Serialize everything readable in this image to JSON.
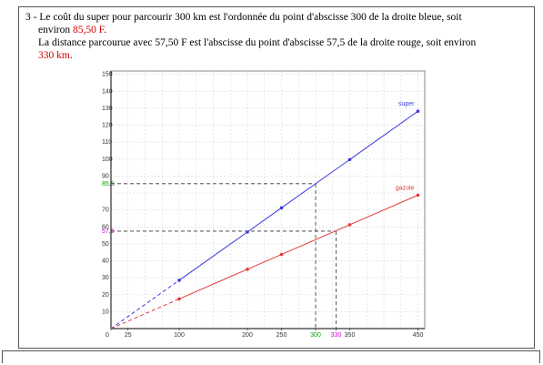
{
  "text": {
    "line1": "3 - Le coût du super pour parcourir 300 km est l'ordonnée du point d'abscisse 300 de la droite bleue, soit",
    "line2_prefix": "environ ",
    "line2_value": "85,50 F",
    "line2_suffix": ".",
    "line3": "La distance parcourue avec 57,50 F est l'abscisse du point d'abscisse 57,5 de la droite rouge, soit environ",
    "line4_value": "330 km",
    "line4_suffix": "."
  },
  "colors": {
    "super": "#3a3ae0",
    "gazole": "#e03a3a",
    "highlight_red": "#d40000",
    "highlight_magenta": "#d000d0",
    "highlight_green": "#00a000"
  },
  "chart_data": {
    "type": "line",
    "xlim": [
      0,
      460
    ],
    "ylim": [
      0,
      152
    ],
    "x_ticks": [
      {
        "value": 0,
        "label": "0"
      },
      {
        "value": 25,
        "label": "25"
      },
      {
        "value": 100,
        "label": "100"
      },
      {
        "value": 200,
        "label": "200"
      },
      {
        "value": 250,
        "label": "250"
      },
      {
        "value": 300,
        "label": "300",
        "color": "#00a000"
      },
      {
        "value": 330,
        "label": "330",
        "color": "#d000d0"
      },
      {
        "value": 350,
        "label": "350"
      },
      {
        "value": 450,
        "label": "450"
      }
    ],
    "y_ticks": [
      {
        "value": 10,
        "label": "10"
      },
      {
        "value": 20,
        "label": "20"
      },
      {
        "value": 30,
        "label": "30"
      },
      {
        "value": 40,
        "label": "40"
      },
      {
        "value": 50,
        "label": "50"
      },
      {
        "value": 57.5,
        "label": "57,5",
        "color": "#d000d0"
      },
      {
        "value": 60,
        "label": "60"
      },
      {
        "value": 70,
        "label": "70"
      },
      {
        "value": 85.5,
        "label": "85,5",
        "color": "#00a000"
      },
      {
        "value": 90,
        "label": "90"
      },
      {
        "value": 100,
        "label": "100"
      },
      {
        "value": 110,
        "label": "110"
      },
      {
        "value": 120,
        "label": "120"
      },
      {
        "value": 130,
        "label": "130"
      },
      {
        "value": 140,
        "label": "140"
      },
      {
        "value": 150,
        "label": "150"
      }
    ],
    "grid": true,
    "series": [
      {
        "name": "super",
        "color": "#3a3ae0",
        "points": [
          [
            100,
            28.5
          ],
          [
            200,
            57
          ],
          [
            250,
            71.25
          ],
          [
            350,
            99.75
          ],
          [
            450,
            128.25
          ]
        ],
        "dashed_from": [
          0,
          0
        ],
        "dashed_to": [
          100,
          28.5
        ]
      },
      {
        "name": "gazole",
        "color": "#e03a3a",
        "points": [
          [
            100,
            17.5
          ],
          [
            200,
            35
          ],
          [
            250,
            43.75
          ],
          [
            350,
            61.25
          ],
          [
            450,
            78.75
          ]
        ],
        "dashed_from": [
          0,
          0
        ],
        "dashed_to": [
          100,
          17.5
        ]
      }
    ],
    "guides": [
      {
        "x": 300,
        "y": 85.5
      },
      {
        "x": 330,
        "y": 57.5
      }
    ]
  }
}
